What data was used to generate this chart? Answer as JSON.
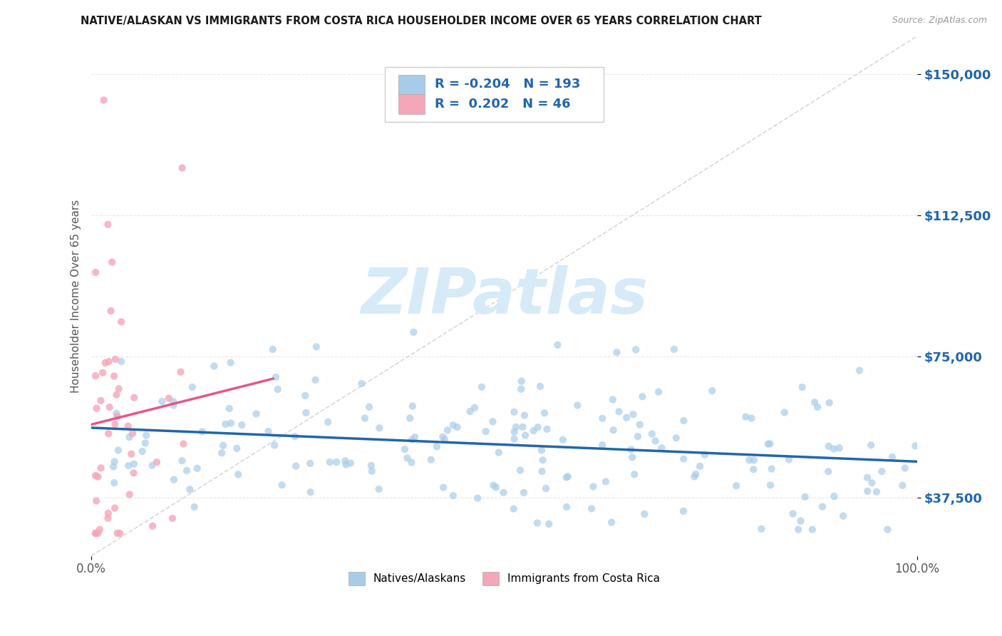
{
  "title": "NATIVE/ALASKAN VS IMMIGRANTS FROM COSTA RICA HOUSEHOLDER INCOME OVER 65 YEARS CORRELATION CHART",
  "source_text": "Source: ZipAtlas.com",
  "ylabel": "Householder Income Over 65 years",
  "x_min": 0.0,
  "x_max": 1.0,
  "y_min": 22000,
  "y_max": 160000,
  "x_tick_labels": [
    "0.0%",
    "100.0%"
  ],
  "x_tick_positions": [
    0.0,
    1.0
  ],
  "y_tick_labels": [
    "$37,500",
    "$75,000",
    "$112,500",
    "$150,000"
  ],
  "y_tick_values": [
    37500,
    75000,
    112500,
    150000
  ],
  "native_R": -0.204,
  "native_N": 193,
  "immigrant_R": 0.202,
  "immigrant_N": 46,
  "native_color": "#a8cce8",
  "immigrant_color": "#f4a7b9",
  "native_trend_color": "#2166ac",
  "immigrant_trend_color": "#e8558a",
  "diagonal_color": "#d8d8d8",
  "watermark_color": "#d6eaf8",
  "legend_box_color": "#ffffff",
  "legend_border_color": "#cccccc",
  "grid_color": "#e8e8e8",
  "title_color": "#1a1a1a",
  "source_color": "#999999",
  "ylabel_color": "#555555",
  "ytick_color": "#2166ac",
  "xtick_color": "#555555"
}
